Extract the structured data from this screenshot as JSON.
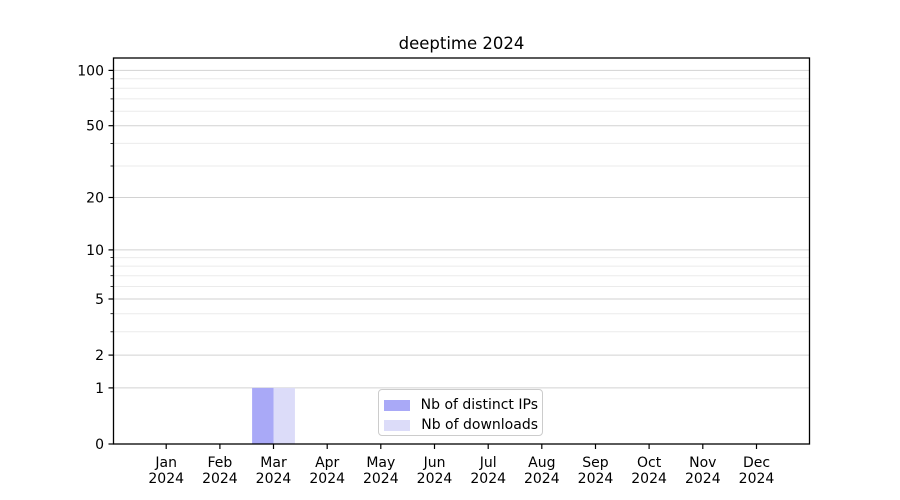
{
  "chart_data": {
    "type": "bar",
    "title": "deeptime 2024",
    "xlabel": "",
    "ylabel": "",
    "categories": [
      "Jan 2024",
      "Feb 2024",
      "Mar 2024",
      "Apr 2024",
      "May 2024",
      "Jun 2024",
      "Jul 2024",
      "Aug 2024",
      "Sep 2024",
      "Oct 2024",
      "Nov 2024",
      "Dec 2024"
    ],
    "series": [
      {
        "name": "Nb of distinct IPs",
        "color": "#a9a9f7",
        "values": [
          0,
          0,
          1,
          0,
          0,
          0,
          0,
          0,
          0,
          0,
          0,
          0
        ]
      },
      {
        "name": "Nb of downloads",
        "color": "#dcdcf9",
        "values": [
          0,
          0,
          1,
          0,
          0,
          0,
          0,
          0,
          0,
          0,
          0,
          0
        ]
      }
    ],
    "yscale": "log1p",
    "ylim": [
      0,
      117
    ],
    "yticks_major": [
      0,
      1,
      2,
      5,
      10,
      20,
      50,
      100
    ],
    "yticks_minor": [
      3,
      4,
      6,
      7,
      8,
      9,
      30,
      40,
      60,
      70,
      80,
      90
    ],
    "grid": "horizontal",
    "legend_position": "lower center",
    "colors": {
      "axis": "#000000",
      "grid_major": "#d2d2d2",
      "grid_minor": "#ebebeb",
      "legend_border": "#cccccc",
      "background": "#ffffff"
    }
  }
}
